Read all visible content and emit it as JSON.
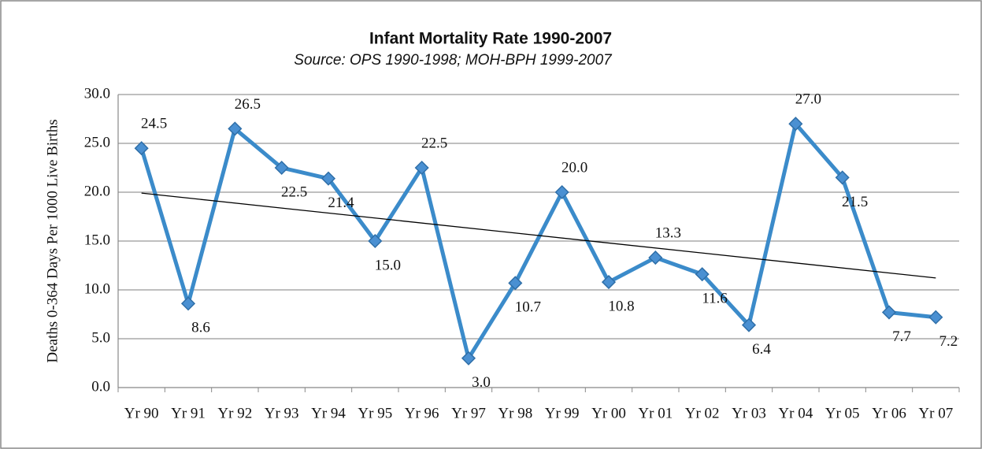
{
  "chart_data": {
    "type": "line",
    "title": "Infant Mortality Rate 1990-2007",
    "subtitle": "Source: OPS 1990-1998; MOH-BPH 1999-2007",
    "y_label": "Deaths 0-364 Days Per 1000 Live Births",
    "categories": [
      "Yr 90",
      "Yr 91",
      "Yr 92",
      "Yr 93",
      "Yr 94",
      "Yr 95",
      "Yr 96",
      "Yr 97",
      "Yr 98",
      "Yr 99",
      "Yr 00",
      "Yr 01",
      "Yr 02",
      "Yr 03",
      "Yr 04",
      "Yr 05",
      "Yr 06",
      "Yr 07"
    ],
    "series": [
      {
        "color": "#3b8bca",
        "values": [
          24.5,
          8.6,
          26.5,
          22.5,
          21.4,
          15.0,
          22.5,
          3.0,
          10.7,
          20.0,
          10.8,
          13.3,
          11.6,
          6.4,
          27.0,
          21.5,
          7.7,
          7.2
        ],
        "value_labels": [
          "24.5",
          "8.6",
          "26.5",
          "22.5",
          "21.4",
          "15.0",
          "22.5",
          "3.0",
          "10.7",
          "20.0",
          "10.8",
          "13.3",
          "11.6",
          "6.4",
          "27.0",
          "21.5",
          "7.7",
          "7.2"
        ]
      }
    ],
    "ylim": [
      0,
      30
    ],
    "yticks": [
      {
        "value": 0,
        "label": "0.0"
      },
      {
        "value": 5,
        "label": "5.0"
      },
      {
        "value": 10,
        "label": "10.0"
      },
      {
        "value": 15,
        "label": "15.0"
      },
      {
        "value": 20,
        "label": "20.0"
      },
      {
        "value": 25,
        "label": "25.0"
      },
      {
        "value": 30,
        "label": "30.0"
      }
    ],
    "grid": true,
    "trendline": true,
    "trendline_color": "#000000"
  }
}
